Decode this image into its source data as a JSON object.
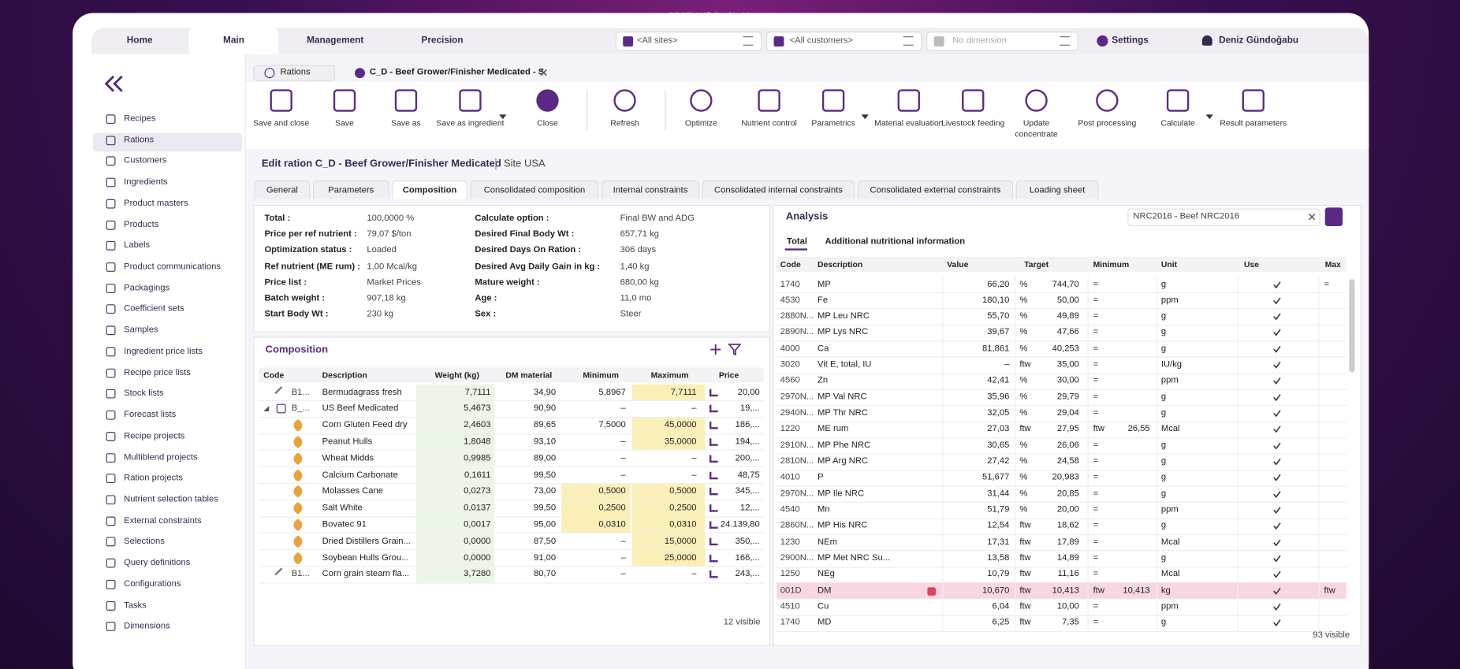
{
  "window_title": "BESTMIX® Recipe Management",
  "nav_tabs": [
    "Home",
    "Main",
    "Management",
    "Precision"
  ],
  "filters": [
    "<All sites>",
    "<All customers>",
    "No dimension"
  ],
  "settings": "Settings",
  "user": "Deniz Gündoğabu",
  "sidebar": [
    "Recipes",
    "Rations",
    "Customers",
    "Ingredients",
    "Product masters",
    "Products",
    "Labels",
    "Product communications",
    "Packagings",
    "Coefficient sets",
    "Samples",
    "Ingredient price lists",
    "Recipe price lists",
    "Stock lists",
    "Forecast lists",
    "Recipe projects",
    "Multiblend projects",
    "Ration projects",
    "Nutrient selection tables",
    "External constraints",
    "Selections",
    "Query definitions",
    "Configurations",
    "Tasks",
    "Dimensions"
  ],
  "doc_tabs": [
    "Rations",
    "C_D - Beef Grower/Finisher Medicated - S"
  ],
  "toolbar": [
    "Save and close",
    "Save",
    "Save as",
    "Save as ingredient",
    "Close",
    "Refresh",
    "Optimize",
    "Nutrient control",
    "Parametrics",
    "Material evaluation",
    "Livestock feeding",
    "Update concentrate",
    "Post processing",
    "Calculate",
    "Result parameters"
  ],
  "heading": {
    "title": "Edit ration C_D - Beef Grower/Finisher Medicated",
    "site": "Site USA"
  },
  "sub_tabs": [
    "General",
    "Parameters",
    "Composition",
    "Consolidated composition",
    "Internal constraints",
    "Consolidated internal constraints",
    "Consolidated external constraints",
    "Loading sheet"
  ],
  "info": {
    "left": [
      [
        "Total :",
        "100,0000 %"
      ],
      [
        "Price per ref nutrient :",
        "79,07 $/ton"
      ],
      [
        "Optimization status :",
        "Loaded"
      ],
      [
        "Ref nutrient (ME rum) :",
        "1,00 Mcal/kg"
      ],
      [
        "Price list :",
        "Market Prices"
      ],
      [
        "Batch weight :",
        "907,18 kg"
      ],
      [
        "Start Body Wt :",
        "230 kg"
      ]
    ],
    "right": [
      [
        "Calculate option :",
        "Final BW and ADG"
      ],
      [
        "Desired Final Body Wt :",
        "657,71 kg"
      ],
      [
        "Desired Days On Ration :",
        "306 days"
      ],
      [
        "Desired Avg Daily Gain in kg :",
        "1,40 kg"
      ],
      [
        "Mature weight :",
        "680,00 kg"
      ],
      [
        "Age :",
        "11,0 mo"
      ],
      [
        "Sex :",
        "Steer"
      ]
    ]
  },
  "composition": {
    "title": "Composition",
    "columns": [
      "Code",
      "Description",
      "Weight (kg)",
      "DM material",
      "Minimum",
      "Maximum",
      "Price"
    ],
    "rows": [
      [
        "B1...",
        "Bermudagrass fresh",
        "7,7111",
        "34,90",
        "5,8967",
        "7,7111",
        "20,00"
      ],
      [
        "B_...",
        "US Beef Medicated",
        "5,4673",
        "90,90",
        "–",
        "–",
        "19,..."
      ],
      [
        null,
        "Corn Gluten Feed dry",
        "2,4603",
        "89,65",
        "7,5000",
        "45,0000",
        "186,..."
      ],
      [
        null,
        "Peanut Hulls",
        "1,8048",
        "93,10",
        "–",
        "35,0000",
        "194,..."
      ],
      [
        null,
        "Wheat Midds",
        "0,9985",
        "89,00",
        "–",
        "–",
        "200,..."
      ],
      [
        null,
        "Calcium Carbonate",
        "0,1611",
        "99,50",
        "–",
        "–",
        "48,75"
      ],
      [
        null,
        "Molasses Cane",
        "0,0273",
        "73,00",
        "0,5000",
        "0,5000",
        "345,..."
      ],
      [
        null,
        "Salt White",
        "0,0137",
        "99,50",
        "0,2500",
        "0,2500",
        "12,..."
      ],
      [
        null,
        "Bovatec 91",
        "0,0017",
        "95,00",
        "0,0310",
        "0,0310",
        "24.139,80"
      ],
      [
        null,
        "Dried Distillers Grain...",
        "0,0000",
        "87,50",
        "–",
        "15,0000",
        "350,..."
      ],
      [
        null,
        "Soybean Hulls Grou...",
        "0,0000",
        "91,00",
        "–",
        "25,0000",
        "166,..."
      ],
      [
        "B1...",
        "Corn grain steam fla...",
        "3,7280",
        "80,70",
        "–",
        "–",
        "243,..."
      ]
    ],
    "footer": "12 visible"
  },
  "analysis": {
    "title": "Analysis",
    "preset": "NRC2016 - Beef NRC2016",
    "tabs": [
      "Total",
      "Additional nutritional information"
    ],
    "columns": [
      "Code",
      "Description",
      "Value",
      "Target",
      "Minimum",
      "Unit",
      "Use",
      "Max"
    ],
    "rows": [
      [
        "1740",
        "MP",
        "66,20",
        "%",
        "744,70",
        "=",
        null,
        "g",
        "="
      ],
      [
        "4530",
        "Fe",
        "180,10",
        "%",
        "50,00",
        "=",
        null,
        "ppm",
        null
      ],
      [
        "2880N...",
        "MP Leu NRC",
        "55,70",
        "%",
        "49,89",
        "=",
        null,
        "g",
        null
      ],
      [
        "2890N...",
        "MP Lys NRC",
        "39,67",
        "%",
        "47,66",
        "=",
        null,
        "g",
        null
      ],
      [
        "4000",
        "Ca",
        "81,861",
        "%",
        "40,253",
        "=",
        null,
        "g",
        null
      ],
      [
        "3020",
        "Vit E, total, IU",
        "–",
        "ftw",
        "35,00",
        "=",
        null,
        "IU/kg",
        null
      ],
      [
        "4560",
        "Zn",
        "42,41",
        "%",
        "30,00",
        "=",
        null,
        "ppm",
        null
      ],
      [
        "2970N...",
        "MP Val NRC",
        "35,96",
        "%",
        "29,79",
        "=",
        null,
        "g",
        null
      ],
      [
        "2940N...",
        "MP Thr NRC",
        "32,05",
        "%",
        "29,04",
        "=",
        null,
        "g",
        null
      ],
      [
        "1220",
        "ME rum",
        "27,03",
        "ftw",
        "27,95",
        "ftw",
        "26,55",
        "Mcal",
        null
      ],
      [
        "2910N...",
        "MP Phe NRC",
        "30,65",
        "%",
        "26,06",
        "=",
        null,
        "g",
        null
      ],
      [
        "2810N...",
        "MP Arg NRC",
        "27,42",
        "%",
        "24,58",
        "=",
        null,
        "g",
        null
      ],
      [
        "4010",
        "P",
        "51,677",
        "%",
        "20,983",
        "=",
        null,
        "g",
        null
      ],
      [
        "2970N...",
        "MP Ile NRC",
        "31,44",
        "%",
        "20,85",
        "=",
        null,
        "g",
        null
      ],
      [
        "4540",
        "Mn",
        "51,79",
        "%",
        "20,00",
        "=",
        null,
        "ppm",
        null
      ],
      [
        "2860N...",
        "MP His NRC",
        "12,54",
        "ftw",
        "18,62",
        "=",
        null,
        "g",
        null
      ],
      [
        "1230",
        "NEm",
        "17,31",
        "ftw",
        "17,89",
        "=",
        null,
        "Mcal",
        null
      ],
      [
        "2900N...",
        "MP Met NRC Su...",
        "13,58",
        "ftw",
        "14,89",
        "=",
        null,
        "g",
        null
      ],
      [
        "1250",
        "NEg",
        "10,79",
        "ftw",
        "11,16",
        "=",
        null,
        "Mcal",
        null
      ],
      [
        "001D",
        "DM",
        "10,670",
        "ftw",
        "10,413",
        "ftw",
        "10,413",
        "kg",
        "ftw"
      ],
      [
        "4510",
        "Cu",
        "6,04",
        "ftw",
        "10,00",
        "=",
        null,
        "ppm",
        null
      ],
      [
        "1740",
        "MD",
        "6,25",
        "ftw",
        "7,35",
        "=",
        null,
        "g",
        null
      ]
    ],
    "footer": "93 visible"
  }
}
